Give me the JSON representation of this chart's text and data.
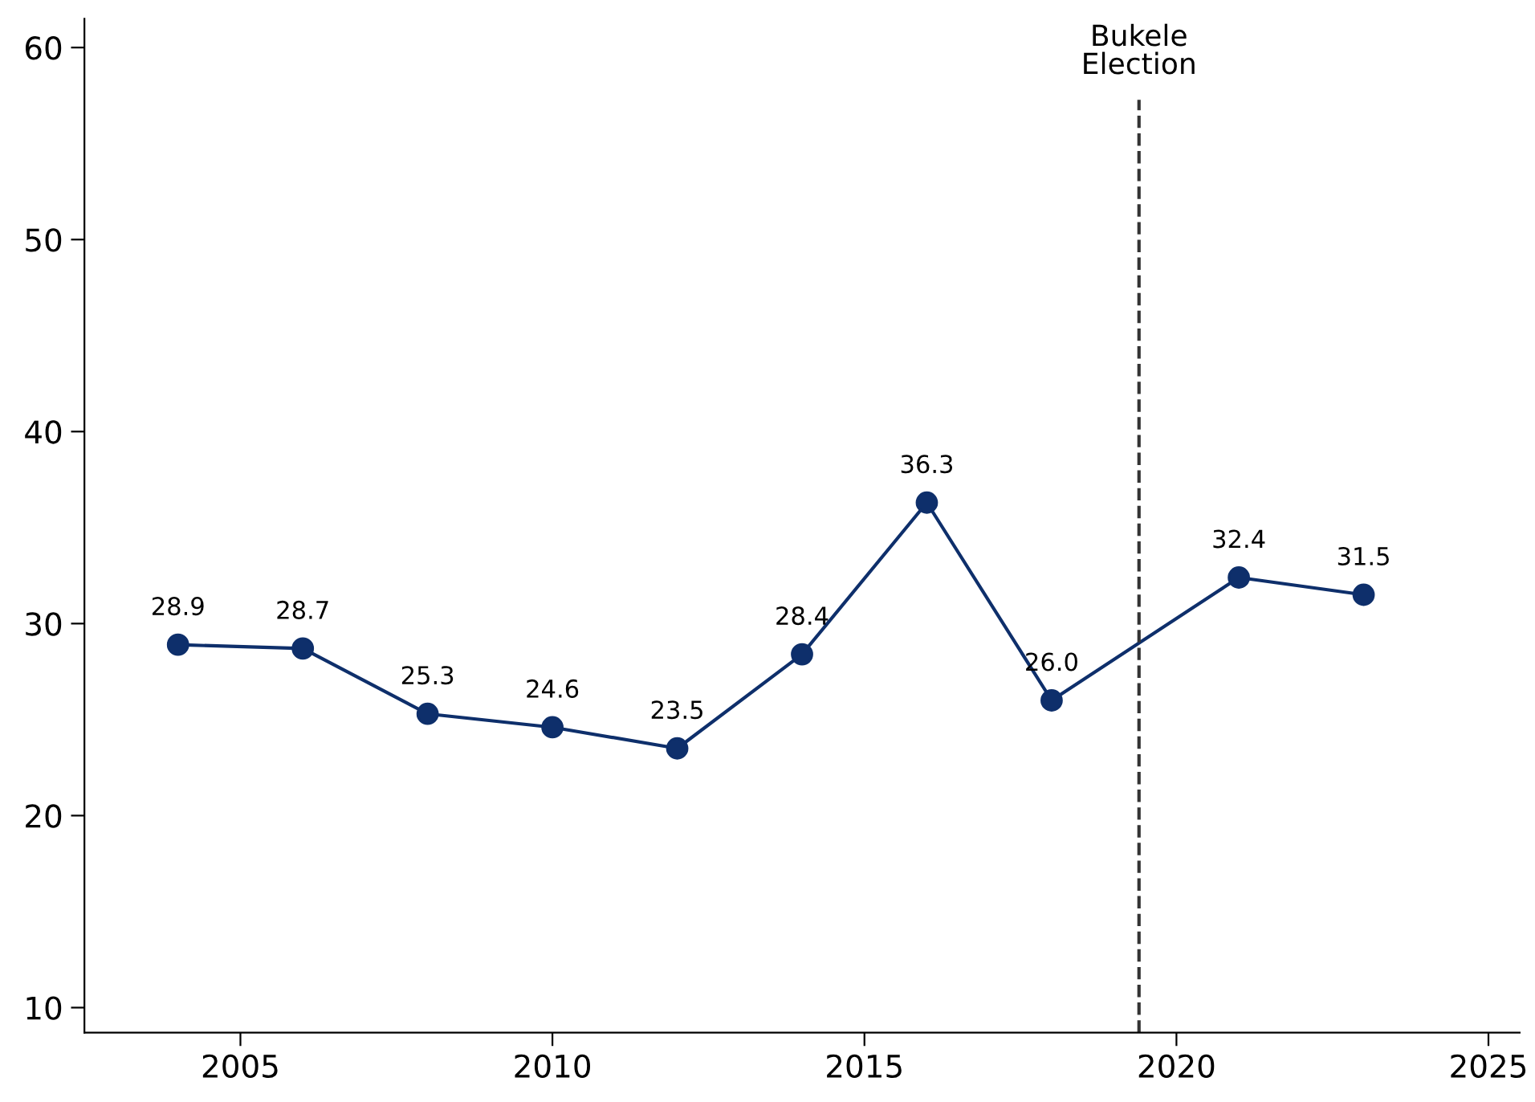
{
  "chart_data": {
    "type": "line",
    "x": [
      2004,
      2006,
      2008,
      2010,
      2012,
      2014,
      2016,
      2018,
      2021,
      2023
    ],
    "series": [
      {
        "color": "#0e2f6b",
        "values": [
          28.9,
          28.7,
          25.3,
          24.6,
          23.5,
          28.4,
          36.3,
          26.0,
          32.4,
          31.5
        ],
        "value_labels": [
          "28.9",
          "28.7",
          "25.3",
          "24.6",
          "23.5",
          "28.4",
          "36.3",
          "26.0",
          "32.4",
          "31.5"
        ]
      }
    ],
    "xlim": [
      2002.5,
      2025.5
    ],
    "ylim": [
      8.7,
      61.5
    ],
    "xticks": [
      2005,
      2010,
      2015,
      2020,
      2025
    ],
    "yticks": [
      10,
      20,
      30,
      40,
      50,
      60
    ],
    "ref_lines": [
      {
        "axis": "x",
        "value": 2019.4,
        "label": "Bukele\nElection",
        "color": "#333333",
        "line_style": "dashed"
      }
    ],
    "marker": "circle",
    "line_style": "solid",
    "grid": false,
    "legend": false
  }
}
